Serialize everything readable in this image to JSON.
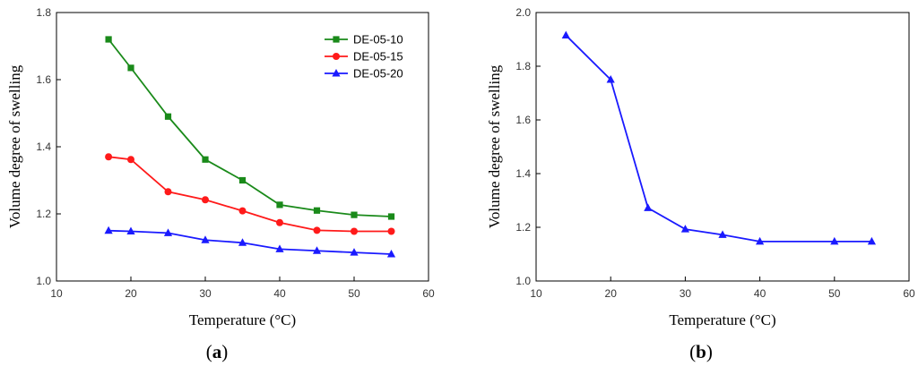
{
  "chart_data": [
    {
      "panel": "a",
      "caption_open": "(",
      "caption_letter": "a",
      "caption_close": ")",
      "type": "line",
      "xlabel": "Temperature (°C)",
      "ylabel": "Volume degree of swelling",
      "xlim": [
        10,
        60
      ],
      "ylim": [
        1.0,
        1.8
      ],
      "xticks": [
        10,
        20,
        30,
        40,
        50,
        60
      ],
      "yticks": [
        "1.0",
        "1.2",
        "1.4",
        "1.6",
        "1.8"
      ],
      "grid": false,
      "legend": "top-right",
      "series": [
        {
          "name": "DE-05-10",
          "color": "#1a8a1a",
          "marker": "square",
          "x": [
            17,
            20,
            25,
            30,
            35,
            40,
            45,
            50,
            55
          ],
          "y": [
            1.72,
            1.635,
            1.49,
            1.362,
            1.3,
            1.227,
            1.21,
            1.197,
            1.192
          ]
        },
        {
          "name": "DE-05-15",
          "color": "#ff1a1a",
          "marker": "circle",
          "x": [
            17,
            20,
            25,
            30,
            35,
            40,
            45,
            50,
            55
          ],
          "y": [
            1.37,
            1.362,
            1.266,
            1.242,
            1.209,
            1.174,
            1.151,
            1.148,
            1.148
          ]
        },
        {
          "name": "DE-05-20",
          "color": "#1a1aff",
          "marker": "triangle",
          "x": [
            17,
            20,
            25,
            30,
            35,
            40,
            45,
            50,
            55
          ],
          "y": [
            1.15,
            1.148,
            1.143,
            1.122,
            1.114,
            1.095,
            1.09,
            1.085,
            1.08
          ]
        }
      ]
    },
    {
      "panel": "b",
      "caption_open": "(",
      "caption_letter": "b",
      "caption_close": ")",
      "type": "line",
      "xlabel": "Temperature (°C)",
      "ylabel": "Volume degree of swelling",
      "xlim": [
        10,
        60
      ],
      "ylim": [
        1.0,
        2.0
      ],
      "xticks": [
        10,
        20,
        30,
        40,
        50,
        60
      ],
      "yticks": [
        "1.0",
        "1.2",
        "1.4",
        "1.6",
        "1.8",
        "2.0"
      ],
      "grid": false,
      "legend": "none",
      "series": [
        {
          "color": "#1a1aff",
          "marker": "triangle",
          "x": [
            14,
            20,
            25,
            30,
            35,
            40,
            50,
            55
          ],
          "y": [
            1.915,
            1.75,
            1.272,
            1.193,
            1.172,
            1.147,
            1.147,
            1.147
          ]
        }
      ]
    }
  ]
}
